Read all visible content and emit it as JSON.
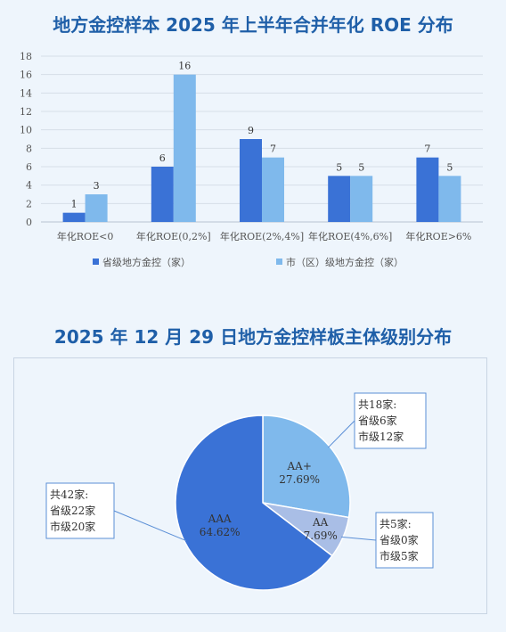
{
  "chart_data": [
    {
      "type": "bar",
      "title": "地方金控样本 2025 年上半年合并年化 ROE 分布",
      "categories": [
        "年化ROE<0",
        "年化ROE(0,2%]",
        "年化ROE(2%,4%]",
        "年化ROE(4%,6%]",
        "年化ROE>6%"
      ],
      "series": [
        {
          "name": "省级地方金控（家）",
          "values": [
            1,
            6,
            9,
            5,
            7
          ],
          "color": "#3a72d6"
        },
        {
          "name": "市（区）级地方金控（家）",
          "values": [
            3,
            16,
            7,
            5,
            5
          ],
          "color": "#7fb9ec"
        }
      ],
      "yticks": [
        "0",
        "2",
        "4",
        "6",
        "8",
        "10",
        "12",
        "14",
        "16",
        "18"
      ],
      "ylim": [
        0,
        18
      ],
      "grid": true,
      "legend": "bottom"
    },
    {
      "type": "pie",
      "title": "2025 年 12 月 29 日地方金控样板主体级别分布",
      "slices": [
        {
          "label": "AA+",
          "value": 27.69,
          "value_label": "27.69%",
          "color": "#7fb9ec",
          "callout": [
            "共18家:",
            "省级6家",
            "市级12家"
          ]
        },
        {
          "label": "AA",
          "value": 7.69,
          "value_label": "7.69%",
          "color": "#a9bee6",
          "callout": [
            "共5家:",
            "省级0家",
            "市级5家"
          ]
        },
        {
          "label": "AAA",
          "value": 64.62,
          "value_label": "64.62%",
          "color": "#3a72d6",
          "callout": [
            "共42家:",
            "省级22家",
            "市级20家"
          ]
        }
      ]
    }
  ]
}
